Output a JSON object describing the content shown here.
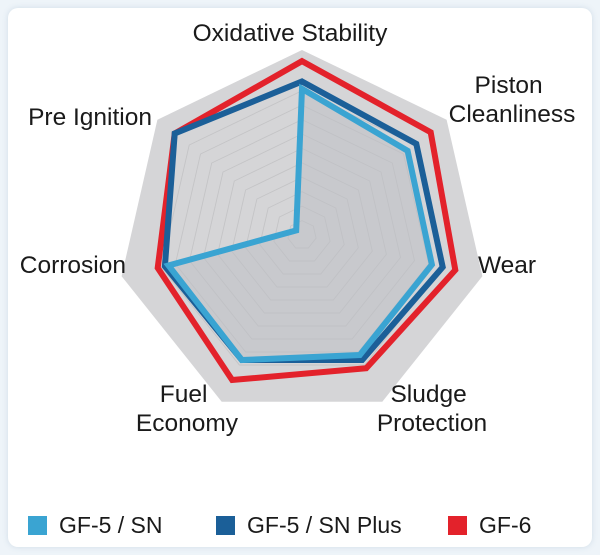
{
  "chart_data": {
    "type": "radar",
    "title": "",
    "axes": [
      "Oxidative Stability",
      "Piston Cleanliness",
      "Wear",
      "Sludge Protection",
      "Fuel Economy",
      "Corrosion",
      "Pre Ignition"
    ],
    "axis_label_lines": [
      [
        "Oxidative Stability"
      ],
      [
        "Piston",
        "Cleanliness"
      ],
      [
        "Wear"
      ],
      [
        "Sludge",
        "Protection"
      ],
      [
        "Fuel",
        "Economy"
      ],
      [
        "Corrosion"
      ],
      [
        "Pre Ignition"
      ]
    ],
    "range": [
      0,
      1
    ],
    "rings": 10,
    "envelope_value": 1.0,
    "series": [
      {
        "name": "GF-5 / SN",
        "color": "#3aa4d2",
        "values": [
          0.79,
          0.73,
          0.72,
          0.72,
          0.75,
          0.74,
          0.04
        ]
      },
      {
        "name": "GF-5 / SN Plus",
        "color": "#1b5f98",
        "values": [
          0.83,
          0.79,
          0.78,
          0.75,
          0.75,
          0.76,
          0.88
        ]
      },
      {
        "name": "GF-6",
        "color": "#e3222b",
        "values": [
          0.94,
          0.89,
          0.85,
          0.8,
          0.87,
          0.8,
          0.88
        ]
      }
    ],
    "legend_position": "bottom"
  },
  "colors": {
    "envelope": "#d5d5d7",
    "grid": "#c4c4c6",
    "label": "#1a1a1a"
  }
}
